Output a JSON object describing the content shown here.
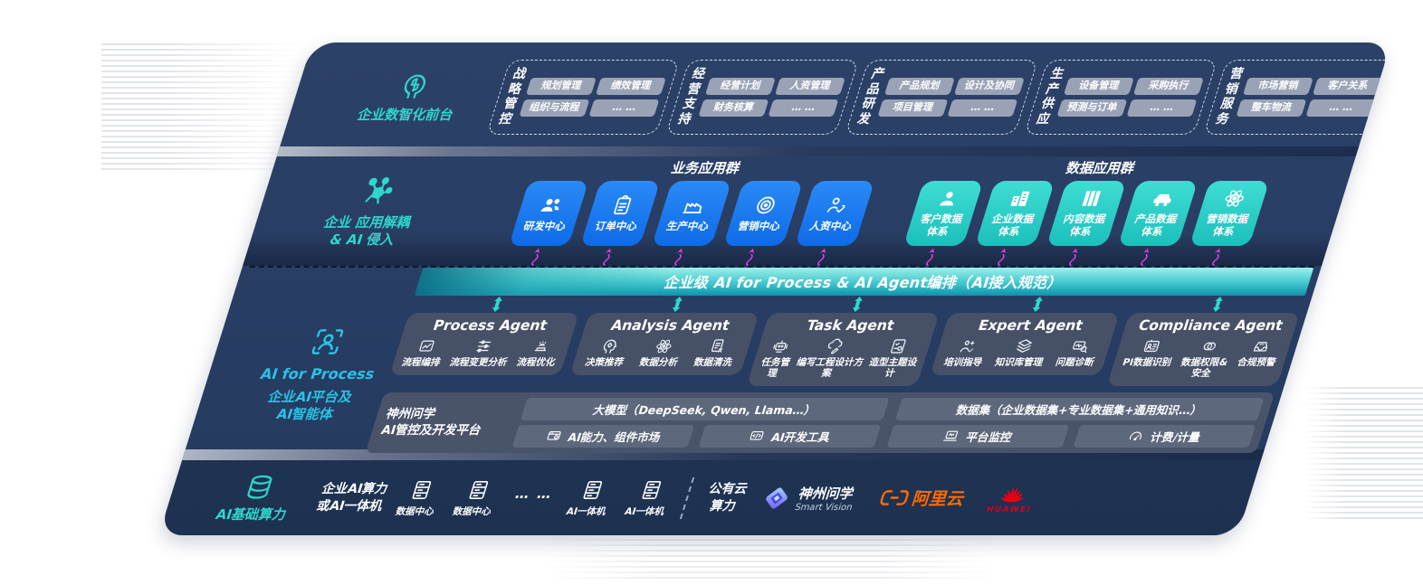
{
  "colors": {
    "accent_teal": "#2fd6cc",
    "accent_cyan": "#28c2e6",
    "accent_blue": "#1b7df0",
    "tile_teal": "#2ecfc6",
    "magenta": "#ea3cf0",
    "navy": "#283d63",
    "aliyun_orange": "#ff6a00",
    "huawei_red": "#e60012"
  },
  "front_office": {
    "label": "企业数智化前台",
    "icon": "brain-icon",
    "groups": [
      {
        "name": [
          "战略",
          "管控"
        ],
        "items": [
          "规划管理",
          "绩效管理",
          "组织与流程",
          "… …"
        ]
      },
      {
        "name": [
          "经营",
          "支持"
        ],
        "items": [
          "经营计划",
          "人资管理",
          "财务核算",
          "… …"
        ]
      },
      {
        "name": [
          "产品",
          "研发"
        ],
        "items": [
          "产品规划",
          "设计及协同",
          "项目管理",
          "… …"
        ]
      },
      {
        "name": [
          "生产",
          "供应"
        ],
        "items": [
          "设备管理",
          "采购执行",
          "预测与订单",
          "… …"
        ]
      },
      {
        "name": [
          "营销",
          "服务"
        ],
        "items": [
          "市场营销",
          "客户关系",
          "整车物流",
          "… …"
        ]
      }
    ]
  },
  "decouple_layer": {
    "label": "企业 应用解耦\n& AI 侵入",
    "icon": "molecule-icon",
    "business": {
      "title": "业务应用群",
      "tiles": [
        {
          "label": "研发中心",
          "icon": "team-icon"
        },
        {
          "label": "订单中心",
          "icon": "clipboard-icon"
        },
        {
          "label": "生产中心",
          "icon": "factory-icon"
        },
        {
          "label": "营销中心",
          "icon": "target-icon"
        },
        {
          "label": "人资中心",
          "icon": "talent-icon"
        }
      ]
    },
    "data": {
      "title": "数据应用群",
      "tiles": [
        {
          "label": "客户数据\n体系",
          "icon": "user-icon"
        },
        {
          "label": "企业数据\n体系",
          "icon": "buildings-icon"
        },
        {
          "label": "内容数据\n体系",
          "icon": "columns-icon"
        },
        {
          "label": "产品数据\n体系",
          "icon": "car-icon"
        },
        {
          "label": "营销数据\n体系",
          "icon": "atom-icon"
        }
      ]
    }
  },
  "orchestration_bar": {
    "label": "企业级 AI for Process & AI Agent编排（AI接入规范）"
  },
  "ai_layer": {
    "label_en": "AI for Process",
    "label_cn": "企业AI平台及\nAI智能体",
    "icon": "focus-person-icon",
    "agents": [
      {
        "title": "Process Agent",
        "caps": [
          {
            "label": "流程编排",
            "icon": "chart-box-icon"
          },
          {
            "label": "流程变更分析",
            "icon": "flow-sliders-icon"
          },
          {
            "label": "流程优化",
            "icon": "conveyor-icon"
          }
        ]
      },
      {
        "title": "Analysis Agent",
        "caps": [
          {
            "label": "决策推荐",
            "icon": "head-gear-icon"
          },
          {
            "label": "数据分析",
            "icon": "atom-icon"
          },
          {
            "label": "数据清洗",
            "icon": "doc-data-icon"
          }
        ]
      },
      {
        "title": "Task Agent",
        "caps": [
          {
            "label": "任务管理",
            "icon": "robot-icon"
          },
          {
            "label": "编写工程设计方案",
            "icon": "cloud-pen-icon"
          },
          {
            "label": "造型主题设计",
            "icon": "design-icon"
          }
        ]
      },
      {
        "title": "Expert Agent",
        "caps": [
          {
            "label": "培训指导",
            "icon": "training-icon"
          },
          {
            "label": "知识库管理",
            "icon": "layers-icon"
          },
          {
            "label": "问题诊断",
            "icon": "diagnose-icon"
          }
        ]
      },
      {
        "title": "Compliance Agent",
        "caps": [
          {
            "label": "PI数据识别",
            "icon": "idcard-icon"
          },
          {
            "label": "数据权限&\n安全",
            "icon": "rings-icon"
          },
          {
            "label": "合规预警",
            "icon": "tray-icon"
          }
        ]
      }
    ],
    "platform": {
      "name": "神州问学\nAI管控及开发平台",
      "model_bar": "大模型（DeepSeek, Qwen, Llama…）",
      "left_cells": [
        {
          "label": "AI能力、组件市场",
          "icon": "market-icon"
        },
        {
          "label": "AI开发工具",
          "icon": "tools-icon"
        }
      ],
      "dataset_bar": "数据集（企业数据集+专业数据集+通用知识…）",
      "right_cells": [
        {
          "label": "平台监控",
          "icon": "monitor-icon"
        },
        {
          "label": "计费/计量",
          "icon": "meter-icon"
        }
      ]
    }
  },
  "infra_layer": {
    "label": "AI基础算力",
    "icon": "database-icon",
    "compute": "企业AI算力\n或AI一体机",
    "servers": [
      "数据中心",
      "数据中心",
      "AI一体机",
      "AI一体机"
    ],
    "dots": "… …",
    "public_cloud": "公有云\n算力",
    "vendors": {
      "shenzhou": {
        "name": "神州问学",
        "sub": "Smart Vision"
      },
      "aliyun": {
        "name": "阿里云"
      },
      "huawei": {
        "name": "HUAWEI"
      }
    }
  }
}
